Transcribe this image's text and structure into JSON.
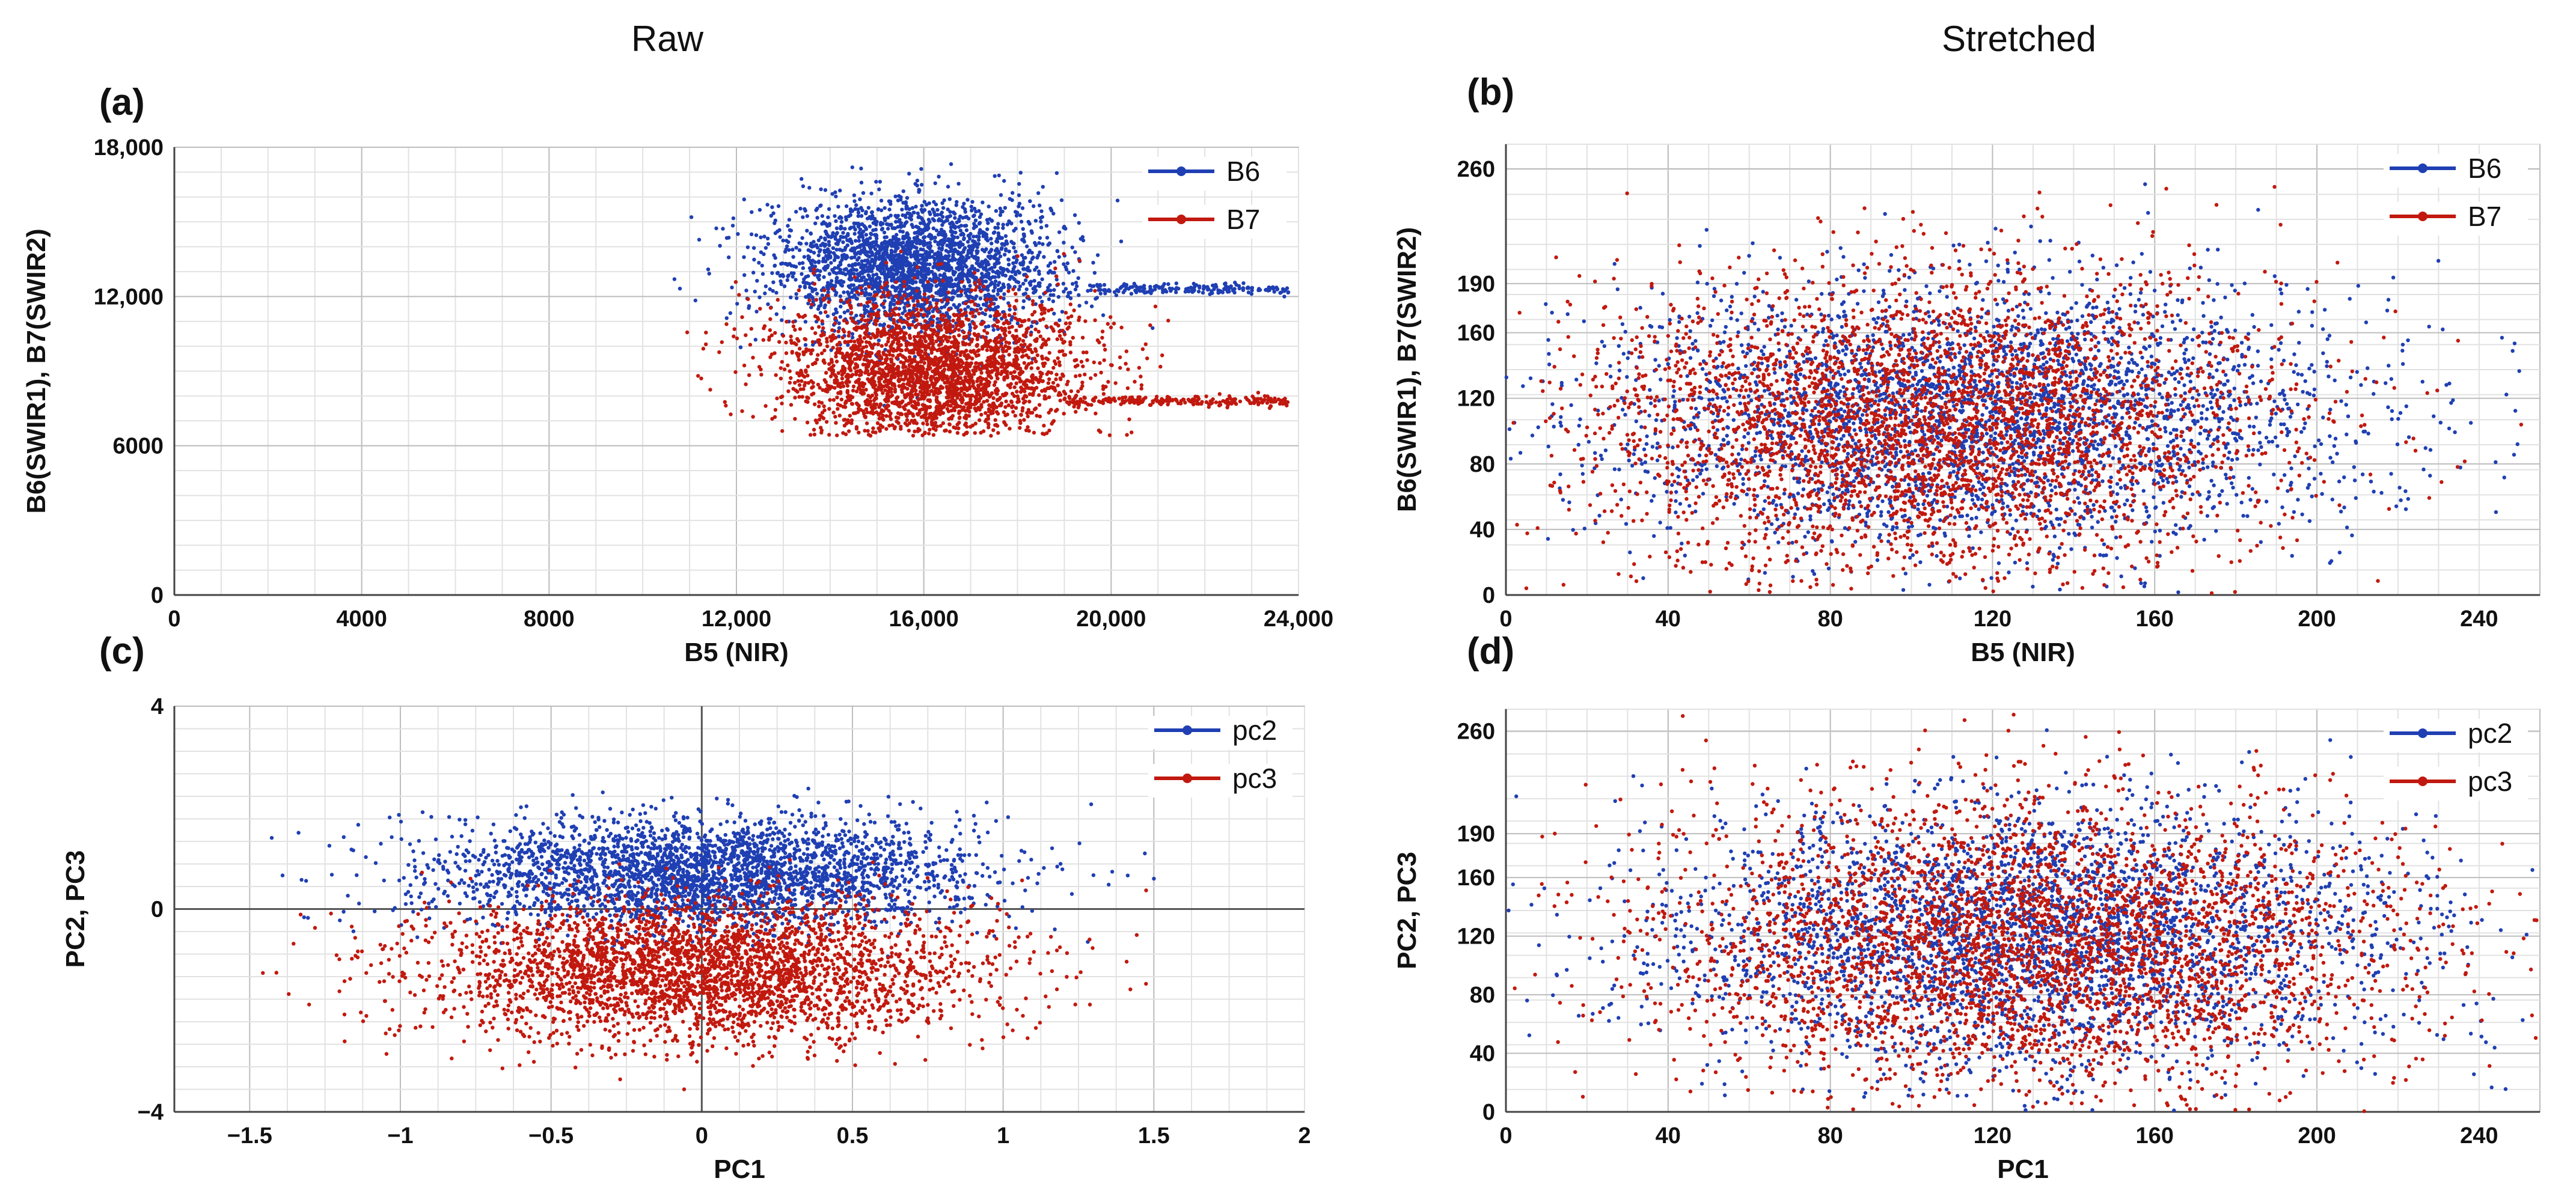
{
  "column_titles": {
    "left": "Raw",
    "right": "Stretched"
  },
  "colors": {
    "blue": "#1f3fb3",
    "red": "#c1190f",
    "grid": "#c8c8c8",
    "axis": "#555555"
  },
  "chart_data": [
    {
      "panel": "(a)",
      "type": "scatter",
      "xlabel": "B5 (NIR)",
      "ylabel": "B6(SWIR1), B7(SWIR2)",
      "xlim": [
        0,
        24000
      ],
      "ylim": [
        0,
        18000
      ],
      "xticks": [
        0,
        4000,
        8000,
        12000,
        16000,
        20000,
        24000
      ],
      "xtick_labels": [
        "0",
        "4000",
        "8000",
        "12,000",
        "16,000",
        "20,000",
        "24,000"
      ],
      "yticks": [
        0,
        6000,
        12000,
        18000
      ],
      "ytick_labels": [
        "0",
        "6000",
        "12,000",
        "18,000"
      ],
      "grid": true,
      "legend_position": "top-right",
      "series": [
        {
          "name": "B6",
          "color": "#1f3fb3",
          "cloud": {
            "center": [
              15800,
              13200
            ],
            "spread": [
              1500,
              1400
            ],
            "count": 2600,
            "xmin": 10500,
            "xmax": 23800,
            "ymin": 6600,
            "ymax": 17600
          },
          "tail": {
            "from": [
              19500,
              12300
            ],
            "to": [
              23800,
              12300
            ],
            "count": 180
          }
        },
        {
          "name": "B7",
          "color": "#c1190f",
          "cloud": {
            "center": [
              16200,
              9000
            ],
            "spread": [
              1600,
              1500
            ],
            "count": 2600,
            "xmin": 10500,
            "xmax": 23800,
            "ymin": 6400,
            "ymax": 15500
          },
          "tail": {
            "from": [
              19000,
              7800
            ],
            "to": [
              23800,
              7800
            ],
            "count": 220
          }
        }
      ]
    },
    {
      "panel": "(b)",
      "type": "scatter",
      "xlabel": "B5 (NIR)",
      "ylabel": "B6(SWIR1), B7(SWIR2)",
      "xlim": [
        0,
        255
      ],
      "ylim": [
        0,
        275
      ],
      "xticks": [
        0,
        40,
        80,
        120,
        160,
        200,
        240
      ],
      "xtick_labels": [
        "0",
        "40",
        "80",
        "120",
        "160",
        "200",
        "240"
      ],
      "yticks": [
        0,
        40,
        80,
        120,
        160,
        190,
        260
      ],
      "ytick_labels": [
        "0",
        "40",
        "80",
        "120",
        "160",
        "190",
        "260"
      ],
      "grid": true,
      "legend_position": "top-right",
      "series": [
        {
          "name": "B6",
          "color": "#1f3fb3",
          "cloud": {
            "center": [
              115,
              110
            ],
            "spread": [
              45,
              40
            ],
            "count": 3200,
            "xmin": 0,
            "xmax": 255,
            "ymin": 0,
            "ymax": 275
          }
        },
        {
          "name": "B7",
          "color": "#c1190f",
          "cloud": {
            "center": [
              105,
              105
            ],
            "spread": [
              42,
              45
            ],
            "count": 3600,
            "xmin": 0,
            "xmax": 255,
            "ymin": 0,
            "ymax": 275
          }
        }
      ]
    },
    {
      "panel": "(c)",
      "type": "scatter",
      "xlabel": "PC1",
      "ylabel": "PC2, PC3",
      "xlim": [
        -1.75,
        2
      ],
      "ylim": [
        -4,
        4
      ],
      "xticks": [
        -1.5,
        -1,
        -0.5,
        0,
        0.5,
        1,
        1.5,
        2
      ],
      "xtick_labels": [
        "−1.5",
        "−1",
        "−0.5",
        "0",
        "0.5",
        "1",
        "1.5",
        "2"
      ],
      "yticks": [
        -4,
        0,
        4
      ],
      "ytick_labels": [
        "−4",
        "0",
        "4"
      ],
      "grid": true,
      "legend_position": "top-right",
      "series": [
        {
          "name": "pc2",
          "color": "#1f3fb3",
          "cloud": {
            "center": [
              0.0,
              0.7
            ],
            "spread": [
              0.45,
              0.55
            ],
            "count": 3000,
            "xmin": -1.55,
            "xmax": 1.65,
            "ymin": -1.0,
            "ymax": 3.2
          }
        },
        {
          "name": "pc3",
          "color": "#c1190f",
          "cloud": {
            "center": [
              0.0,
              -1.2
            ],
            "spread": [
              0.45,
              0.7
            ],
            "count": 3200,
            "xmin": -1.55,
            "xmax": 1.65,
            "ymin": -3.6,
            "ymax": 1.0
          }
        }
      ]
    },
    {
      "panel": "(d)",
      "type": "scatter",
      "xlabel": "PC1",
      "ylabel": "PC2, PC3",
      "xlim": [
        0,
        255
      ],
      "ylim": [
        0,
        275
      ],
      "xticks": [
        0,
        40,
        80,
        120,
        160,
        200,
        240
      ],
      "xtick_labels": [
        "0",
        "40",
        "80",
        "120",
        "160",
        "200",
        "240"
      ],
      "yticks": [
        0,
        40,
        80,
        120,
        160,
        190,
        260
      ],
      "ytick_labels": [
        "0",
        "40",
        "80",
        "120",
        "160",
        "190",
        "260"
      ],
      "grid": true,
      "legend_position": "top-right",
      "series": [
        {
          "name": "pc2",
          "color": "#1f3fb3",
          "cloud": {
            "center": [
              130,
              120
            ],
            "spread": [
              45,
              45
            ],
            "count": 3200,
            "xmin": 0,
            "xmax": 255,
            "ymin": 0,
            "ymax": 275
          }
        },
        {
          "name": "pc3",
          "color": "#c1190f",
          "cloud": {
            "center": [
              130,
              115
            ],
            "spread": [
              45,
              50
            ],
            "count": 3600,
            "xmin": 0,
            "xmax": 255,
            "ymin": 0,
            "ymax": 275
          }
        }
      ]
    }
  ]
}
